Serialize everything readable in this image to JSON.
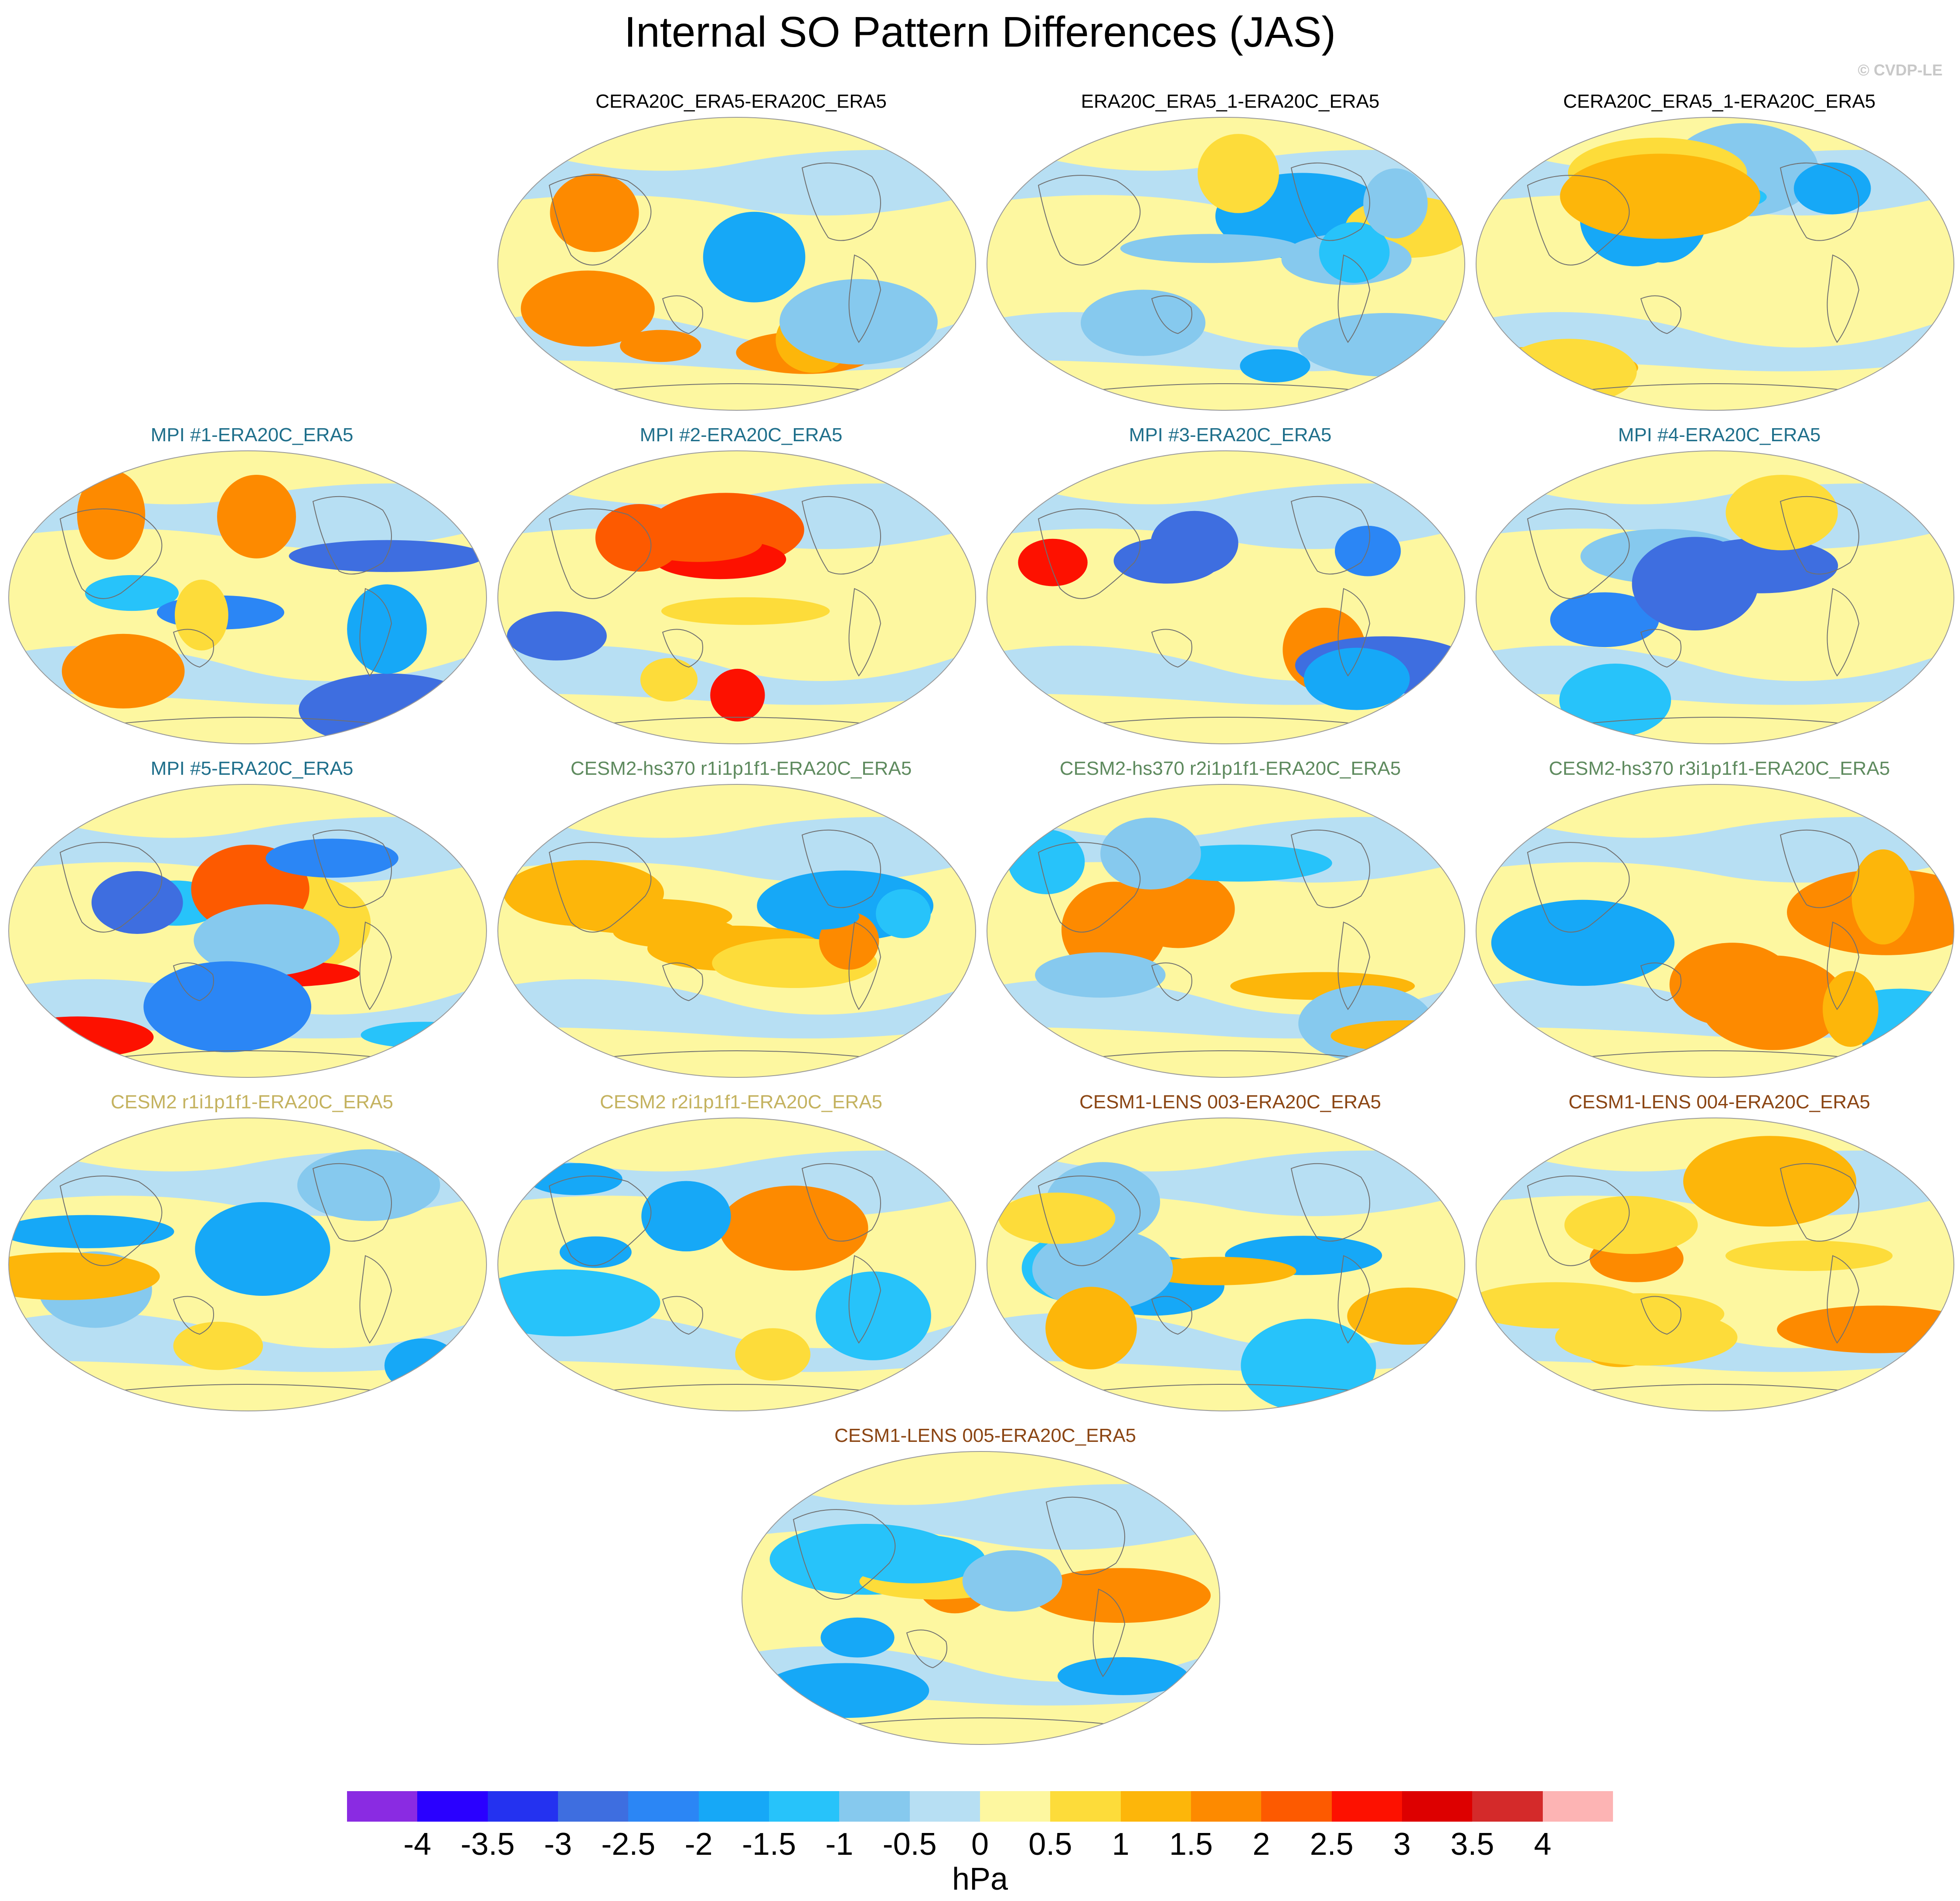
{
  "title": "Internal SO Pattern Differences (JAS)",
  "watermark": "© CVDP-LE",
  "colors": {
    "black_title": "#000000",
    "mpi_title": "#1f6f8b",
    "cesm2hs_title": "#5e8a5e",
    "cesm2_title": "#c4b25f",
    "cesm1_title": "#8b4513",
    "land_outline": "#707070"
  },
  "panels": [
    {
      "label": "CERA20C_ERA5-ERA20C_ERA5",
      "group": "obs"
    },
    {
      "label": "ERA20C_ERA5_1-ERA20C_ERA5",
      "group": "obs"
    },
    {
      "label": "CERA20C_ERA5_1-ERA20C_ERA5",
      "group": "obs"
    },
    {
      "label": "MPI #1-ERA20C_ERA5",
      "group": "mpi"
    },
    {
      "label": "MPI #2-ERA20C_ERA5",
      "group": "mpi"
    },
    {
      "label": "MPI #3-ERA20C_ERA5",
      "group": "mpi"
    },
    {
      "label": "MPI #4-ERA20C_ERA5",
      "group": "mpi"
    },
    {
      "label": "MPI #5-ERA20C_ERA5",
      "group": "mpi"
    },
    {
      "label": "CESM2-hs370 r1i1p1f1-ERA20C_ERA5",
      "group": "cesm2hs"
    },
    {
      "label": "CESM2-hs370 r2i1p1f1-ERA20C_ERA5",
      "group": "cesm2hs"
    },
    {
      "label": "CESM2-hs370 r3i1p1f1-ERA20C_ERA5",
      "group": "cesm2hs"
    },
    {
      "label": "CESM2 r1i1p1f1-ERA20C_ERA5",
      "group": "cesm2"
    },
    {
      "label": "CESM2 r2i1p1f1-ERA20C_ERA5",
      "group": "cesm2"
    },
    {
      "label": "CESM1-LENS 003-ERA20C_ERA5",
      "group": "cesm1"
    },
    {
      "label": "CESM1-LENS 004-ERA20C_ERA5",
      "group": "cesm1"
    },
    {
      "label": "CESM1-LENS 005-ERA20C_ERA5",
      "group": "cesm1"
    }
  ],
  "colorbar": {
    "units": "hPa",
    "levels": [
      "-4",
      "-3.5",
      "-3",
      "-2.5",
      "-2",
      "-1.5",
      "-1",
      "-0.5",
      "0",
      "0.5",
      "1",
      "1.5",
      "2",
      "2.5",
      "3",
      "3.5",
      "4"
    ],
    "colors": [
      "#8a2be2",
      "#2a00ff",
      "#2432f0",
      "#3e6ee0",
      "#2b86f5",
      "#16a8f7",
      "#27c3fa",
      "#86c9ee",
      "#b7dff3",
      "#fdf7a0",
      "#fddc3a",
      "#fdb60a",
      "#fd8a00",
      "#fd5a00",
      "#fd1100",
      "#dd0000",
      "#d42a2a",
      "#fdb4b4"
    ]
  }
}
